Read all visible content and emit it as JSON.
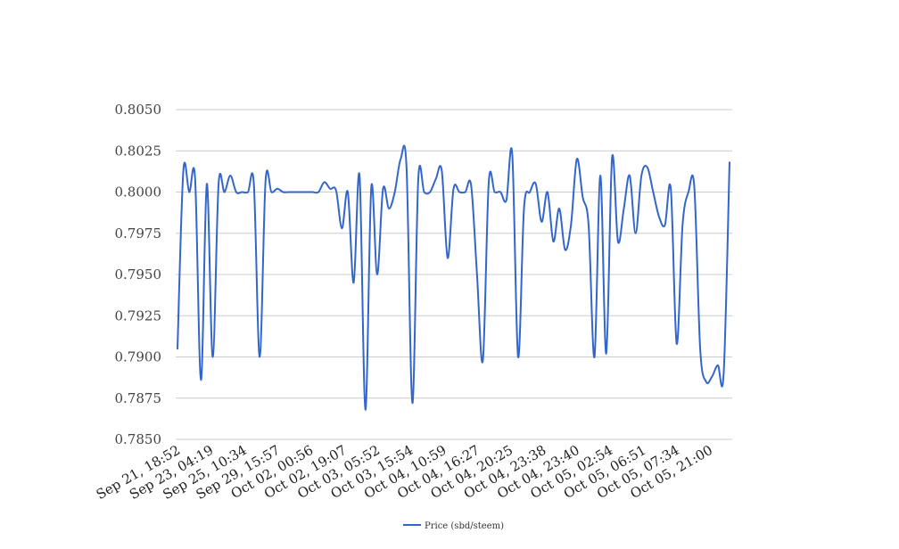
{
  "chart_data": {
    "type": "line",
    "title": "",
    "xlabel": "",
    "ylabel": "",
    "ylim": [
      0.785,
      0.805
    ],
    "y_ticks": [
      "0.8050",
      "0.8025",
      "0.8000",
      "0.7975",
      "0.7950",
      "0.7925",
      "0.7900",
      "0.7875",
      "0.7850"
    ],
    "x_tick_labels": [
      "Sep 21, 18:52",
      "Sep 23, 04:19",
      "Sep 25, 10:34",
      "Sep 29, 15:57",
      "Oct 02, 00:56",
      "Oct 02, 19:07",
      "Oct 03, 05:52",
      "Oct 03, 15:54",
      "Oct 04, 10:59",
      "Oct 04, 16:27",
      "Oct 04, 20:25",
      "Oct 04, 23:38",
      "Oct 04, 23:40",
      "Oct 05, 02:54",
      "Oct 05, 06:51",
      "Oct 05, 07:34",
      "Oct 05, 21:00"
    ],
    "grid": true,
    "legend_position": "bottom",
    "color": "#3366cc",
    "series": [
      {
        "name": "Price (sbd/steem)",
        "values": [
          0.7905,
          0.8013,
          0.8,
          0.8008,
          0.7886,
          0.8005,
          0.79,
          0.8005,
          0.8,
          0.801,
          0.8,
          0.8,
          0.8,
          0.8005,
          0.79,
          0.8007,
          0.8,
          0.8002,
          0.8,
          0.8,
          0.8,
          0.8,
          0.8,
          0.8,
          0.8,
          0.8006,
          0.8002,
          0.8001,
          0.7978,
          0.8,
          0.7945,
          0.801,
          0.7868,
          0.8003,
          0.795,
          0.8002,
          0.799,
          0.8,
          0.802,
          0.8015,
          0.7872,
          0.8008,
          0.8,
          0.8,
          0.8008,
          0.8013,
          0.796,
          0.8002,
          0.8,
          0.8,
          0.8004,
          0.795,
          0.7898,
          0.8006,
          0.8,
          0.8,
          0.7995,
          0.8023,
          0.79,
          0.799,
          0.8,
          0.8005,
          0.7982,
          0.8,
          0.797,
          0.799,
          0.7965,
          0.798,
          0.802,
          0.7997,
          0.798,
          0.79,
          0.801,
          0.7902,
          0.8021,
          0.797,
          0.799,
          0.801,
          0.7975,
          0.801,
          0.8015,
          0.8,
          0.7985,
          0.798,
          0.8002,
          0.7908,
          0.798,
          0.8,
          0.8003,
          0.7905,
          0.7885,
          0.7888,
          0.7895,
          0.789,
          0.8018
        ]
      }
    ]
  }
}
